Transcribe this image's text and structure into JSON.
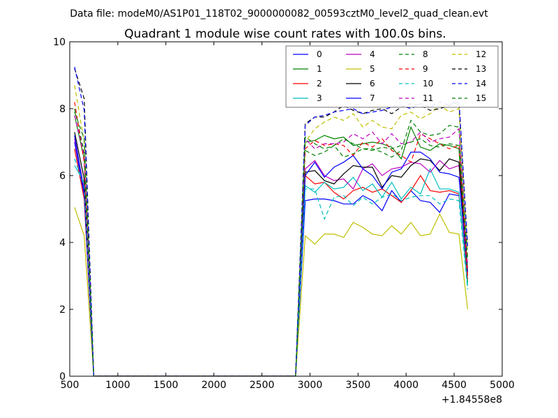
{
  "chart_data": {
    "type": "line",
    "suptitle": "Data file: modeM0/AS1P01_118T02_9000000082_00593cztM0_level2_quad_clean.evt",
    "title": "Quadrant 1 module wise count rates with 100.0s bins.",
    "xlabel": "",
    "ylabel": "",
    "x_offset_label": "+1.84558e8",
    "xlim": [
      500,
      5000
    ],
    "ylim": [
      0,
      10
    ],
    "xticks": [
      "500",
      "1000",
      "1500",
      "2000",
      "2500",
      "3000",
      "3500",
      "4000",
      "4500",
      "5000"
    ],
    "yticks": [
      "0",
      "2",
      "4",
      "6",
      "8",
      "10"
    ],
    "grid": false,
    "legend_position": "top-right",
    "x": [
      550,
      650,
      750,
      850,
      950,
      1050,
      1150,
      1250,
      1350,
      1450,
      1550,
      1650,
      1750,
      1850,
      1950,
      2050,
      2150,
      2250,
      2350,
      2450,
      2550,
      2650,
      2750,
      2850,
      2950,
      3050,
      3150,
      3250,
      3350,
      3450,
      3550,
      3650,
      3750,
      3850,
      3950,
      4050,
      4150,
      4250,
      4350,
      4450,
      4550,
      4640
    ],
    "series": [
      {
        "name": "0",
        "color": "#0000ff",
        "dash": "solid",
        "values": [
          7.0,
          5.4,
          0,
          0,
          0,
          0,
          0,
          0,
          0,
          0,
          0,
          0,
          0,
          0,
          0,
          0,
          0,
          0,
          0,
          0,
          0,
          0,
          0,
          0,
          5.25,
          5.3,
          5.3,
          5.25,
          5.15,
          5.15,
          5.4,
          5.25,
          4.95,
          5.55,
          5.2,
          5.55,
          5.25,
          5.2,
          4.9,
          5.45,
          5.4,
          3.0
        ]
      },
      {
        "name": "1",
        "color": "#008000",
        "dash": "solid",
        "values": [
          7.8,
          6.5,
          0,
          0,
          0,
          0,
          0,
          0,
          0,
          0,
          0,
          0,
          0,
          0,
          0,
          0,
          0,
          0,
          0,
          0,
          0,
          0,
          0,
          0,
          7.0,
          7.05,
          7.2,
          7.1,
          7.15,
          6.9,
          6.95,
          7.0,
          6.95,
          6.85,
          6.5,
          7.45,
          6.85,
          6.75,
          6.95,
          6.9,
          6.8,
          2.8
        ]
      },
      {
        "name": "2",
        "color": "#ff0000",
        "dash": "solid",
        "values": [
          6.8,
          5.3,
          0,
          0,
          0,
          0,
          0,
          0,
          0,
          0,
          0,
          0,
          0,
          0,
          0,
          0,
          0,
          0,
          0,
          0,
          0,
          0,
          0,
          0,
          6.0,
          5.75,
          5.8,
          5.5,
          5.3,
          5.55,
          5.65,
          5.5,
          5.6,
          5.4,
          5.2,
          5.55,
          6.0,
          5.55,
          5.5,
          5.55,
          5.45,
          2.9
        ]
      },
      {
        "name": "3",
        "color": "#00bfbf",
        "dash": "solid",
        "values": [
          6.3,
          5.8,
          0,
          0,
          0,
          0,
          0,
          0,
          0,
          0,
          0,
          0,
          0,
          0,
          0,
          0,
          0,
          0,
          0,
          0,
          0,
          0,
          0,
          0,
          5.7,
          5.5,
          5.8,
          5.6,
          5.65,
          5.95,
          5.55,
          5.75,
          5.35,
          5.8,
          5.3,
          5.65,
          5.45,
          6.2,
          5.6,
          5.6,
          5.5,
          2.7
        ]
      },
      {
        "name": "4",
        "color": "#bf00bf",
        "dash": "solid",
        "values": [
          7.1,
          5.6,
          0,
          0,
          0,
          0,
          0,
          0,
          0,
          0,
          0,
          0,
          0,
          0,
          0,
          0,
          0,
          0,
          0,
          0,
          0,
          0,
          0,
          0,
          6.2,
          6.45,
          6.0,
          5.85,
          5.9,
          5.6,
          6.2,
          6.35,
          6.0,
          6.2,
          6.25,
          6.4,
          6.35,
          6.1,
          6.45,
          6.2,
          6.3,
          3.2
        ]
      },
      {
        "name": "5",
        "color": "#bfbf00",
        "dash": "solid",
        "values": [
          5.05,
          4.2,
          0,
          0,
          0,
          0,
          0,
          0,
          0,
          0,
          0,
          0,
          0,
          0,
          0,
          0,
          0,
          0,
          0,
          0,
          0,
          0,
          0,
          0,
          4.2,
          3.95,
          4.25,
          4.25,
          4.15,
          4.6,
          4.45,
          4.25,
          4.2,
          4.5,
          4.25,
          4.6,
          4.2,
          4.25,
          4.85,
          4.3,
          4.25,
          2.0
        ]
      },
      {
        "name": "6",
        "color": "#000000",
        "dash": "solid",
        "values": [
          7.3,
          5.9,
          0,
          0,
          0,
          0,
          0,
          0,
          0,
          0,
          0,
          0,
          0,
          0,
          0,
          0,
          0,
          0,
          0,
          0,
          0,
          0,
          0,
          0,
          6.1,
          6.15,
          5.85,
          5.75,
          6.05,
          6.3,
          6.25,
          6.25,
          5.65,
          6.0,
          5.95,
          6.3,
          6.5,
          6.45,
          6.15,
          6.5,
          6.4,
          3.1
        ]
      },
      {
        "name": "7",
        "color": "#0000ff",
        "dash": "solid",
        "values": [
          7.2,
          5.5,
          0,
          0,
          0,
          0,
          0,
          0,
          0,
          0,
          0,
          0,
          0,
          0,
          0,
          0,
          0,
          0,
          0,
          0,
          0,
          0,
          0,
          0,
          6.0,
          6.4,
          5.95,
          6.25,
          6.4,
          6.6,
          6.2,
          6.0,
          5.6,
          6.1,
          6.2,
          6.7,
          6.7,
          6.5,
          6.1,
          6.05,
          5.95,
          3.1
        ]
      },
      {
        "name": "8",
        "color": "#008000",
        "dash": "dashed",
        "values": [
          8.0,
          6.7,
          0,
          0,
          0,
          0,
          0,
          0,
          0,
          0,
          0,
          0,
          0,
          0,
          0,
          0,
          0,
          0,
          0,
          0,
          0,
          0,
          0,
          0,
          6.75,
          6.6,
          6.7,
          6.9,
          6.55,
          6.65,
          6.8,
          6.8,
          6.7,
          6.55,
          6.75,
          7.65,
          7.3,
          7.2,
          7.25,
          7.5,
          7.45,
          3.2
        ]
      },
      {
        "name": "9",
        "color": "#ff0000",
        "dash": "dashed",
        "values": [
          8.2,
          6.4,
          0,
          0,
          0,
          0,
          0,
          0,
          0,
          0,
          0,
          0,
          0,
          0,
          0,
          0,
          0,
          0,
          0,
          0,
          0,
          0,
          0,
          0,
          6.8,
          7.05,
          6.9,
          6.95,
          6.9,
          6.6,
          7.0,
          6.85,
          7.1,
          6.75,
          6.6,
          6.4,
          7.25,
          7.1,
          6.95,
          6.8,
          6.9,
          3.0
        ]
      },
      {
        "name": "10",
        "color": "#00bfbf",
        "dash": "dashed",
        "values": [
          6.5,
          5.7,
          0,
          0,
          0,
          0,
          0,
          0,
          0,
          0,
          0,
          0,
          0,
          0,
          0,
          0,
          0,
          0,
          0,
          0,
          0,
          0,
          0,
          0,
          5.6,
          5.6,
          4.7,
          5.35,
          5.4,
          5.1,
          5.35,
          5.15,
          5.35,
          5.45,
          5.25,
          5.35,
          5.4,
          5.4,
          5.15,
          5.3,
          5.25,
          2.6
        ]
      },
      {
        "name": "11",
        "color": "#bf00bf",
        "dash": "dashed",
        "values": [
          7.8,
          6.6,
          0,
          0,
          0,
          0,
          0,
          0,
          0,
          0,
          0,
          0,
          0,
          0,
          0,
          0,
          0,
          0,
          0,
          0,
          0,
          0,
          0,
          0,
          7.1,
          6.8,
          6.95,
          6.95,
          7.0,
          7.25,
          7.1,
          7.3,
          6.95,
          7.25,
          6.95,
          7.0,
          7.3,
          7.0,
          7.1,
          7.15,
          7.4,
          3.3
        ]
      },
      {
        "name": "12",
        "color": "#bfbf00",
        "dash": "dashed",
        "values": [
          8.7,
          7.0,
          0,
          0,
          0,
          0,
          0,
          0,
          0,
          0,
          0,
          0,
          0,
          0,
          0,
          0,
          0,
          0,
          0,
          0,
          0,
          0,
          0,
          0,
          7.0,
          7.4,
          7.6,
          7.75,
          7.65,
          7.85,
          7.45,
          7.65,
          7.45,
          7.4,
          7.8,
          7.9,
          7.7,
          7.85,
          8.1,
          7.9,
          8.0,
          3.6
        ]
      },
      {
        "name": "13",
        "color": "#000000",
        "dash": "dashed",
        "values": [
          9.2,
          8.3,
          0,
          0,
          0,
          0,
          0,
          0,
          0,
          0,
          0,
          0,
          0,
          0,
          0,
          0,
          0,
          0,
          0,
          0,
          0,
          0,
          0,
          0,
          7.55,
          7.75,
          7.75,
          7.9,
          8.1,
          7.95,
          7.85,
          7.95,
          8.0,
          7.85,
          8.05,
          8.15,
          8.1,
          7.95,
          8.0,
          8.1,
          8.2,
          3.9
        ]
      },
      {
        "name": "14",
        "color": "#0000ff",
        "dash": "dashed",
        "values": [
          9.25,
          7.95,
          0,
          0,
          0,
          0,
          0,
          0,
          0,
          0,
          0,
          0,
          0,
          0,
          0,
          0,
          0,
          0,
          0,
          0,
          0,
          0,
          0,
          0,
          7.5,
          7.75,
          7.8,
          7.9,
          7.95,
          8.0,
          7.85,
          7.9,
          7.95,
          8.05,
          8.1,
          8.0,
          8.15,
          8.05,
          8.2,
          8.1,
          8.3,
          3.8
        ]
      },
      {
        "name": "15",
        "color": "#008000",
        "dash": "dashed",
        "values": [
          7.9,
          7.1,
          0,
          0,
          0,
          0,
          0,
          0,
          0,
          0,
          0,
          0,
          0,
          0,
          0,
          0,
          0,
          0,
          0,
          0,
          0,
          0,
          0,
          0,
          7.15,
          6.95,
          6.8,
          6.9,
          7.1,
          6.95,
          6.8,
          6.75,
          6.85,
          6.8,
          6.9,
          7.0,
          7.1,
          6.9,
          6.85,
          6.95,
          6.9,
          3.5
        ]
      }
    ]
  }
}
